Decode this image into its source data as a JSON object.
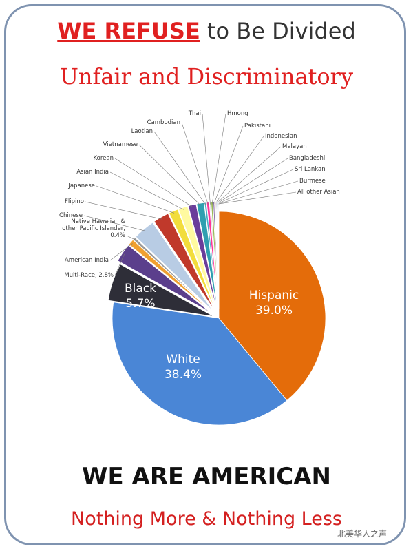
{
  "header": {
    "emphasis": "WE REFUSE",
    "rest": "to Be Divided",
    "subtitle": "Unfair and Discriminatory"
  },
  "chart_data": {
    "type": "pie",
    "categories": [
      "Hispanic",
      "White",
      "Black",
      "Multi-Race, 2.8%",
      "American India",
      "Native Hawaiian & other Pacific Islander, 0.4%",
      "Chinese",
      "Flipino",
      "Japanese",
      "Asian India",
      "Korean",
      "Vietnamese",
      "Laotian",
      "Cambodian",
      "Thai",
      "Hmong",
      "Pakistani",
      "Indonesian",
      "Malayan",
      "Bangladeshi",
      "Sri Lankan",
      "Burmese",
      "All other Asian"
    ],
    "values": [
      39.0,
      38.4,
      5.7,
      2.8,
      0.9,
      0.4,
      3.3,
      2.4,
      1.4,
      1.4,
      1.2,
      1.1,
      0.3,
      0.4,
      0.2,
      0.3,
      0.2,
      0.1,
      0.1,
      0.1,
      0.1,
      0.1,
      0.1
    ],
    "value_labels": [
      "39.0%",
      "38.4%",
      "5.7%",
      null,
      null,
      null,
      null,
      null,
      null,
      null,
      null,
      null,
      null,
      null,
      null,
      null,
      null,
      null,
      null,
      null,
      null,
      null,
      null
    ],
    "colors": [
      "#e46c0a",
      "#4a86d6",
      "#2e2e38",
      "#5b3f8c",
      "#f0a030",
      "#9a9a9a",
      "#b8cce4",
      "#c0392b",
      "#f2dd3c",
      "#fffaa0",
      "#6a3d9a",
      "#2f9fb0",
      "#4bacc6",
      "#ff3399",
      "#d9d9d9",
      "#9bbb59",
      "#8064a2",
      "#f79646",
      "#c0504d",
      "#1f497d",
      "#4f81bd",
      "#7f7f7f",
      "#bfbfbf"
    ]
  },
  "footer": {
    "headline": "WE ARE AMERICAN",
    "tagline": "Nothing More & Nothing Less",
    "watermark": "北美华人之声"
  }
}
